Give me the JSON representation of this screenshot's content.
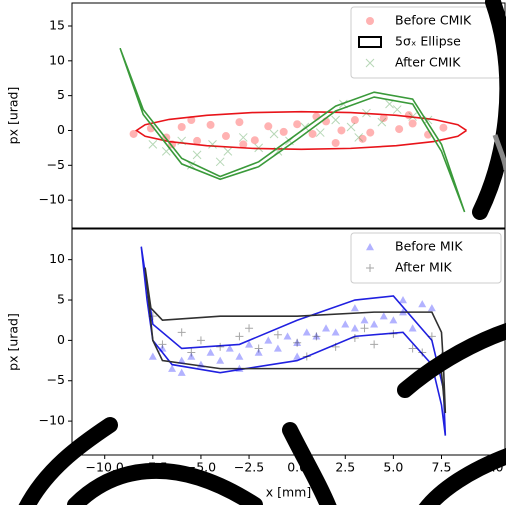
{
  "chart_data": [
    {
      "type": "scatter",
      "ylabel": "px [urad]",
      "xlim": [
        -11.7,
        10.8
      ],
      "ylim": [
        -14,
        18.3
      ],
      "yticks": [
        15,
        10,
        5,
        0,
        {
          "value": -5,
          "label": "−5"
        },
        {
          "value": -10,
          "label": "−10"
        }
      ],
      "legend": "upper right",
      "series": [
        {
          "name": "Before CMIK",
          "color": "#ff0000",
          "marker": "o",
          "x": [
            -8.5,
            -7.6,
            -6.8,
            -6,
            -5.2,
            -4.5,
            -3.7,
            -3,
            -2.2,
            -1.5,
            -0.7,
            0,
            0.8,
            1.5,
            2.3,
            3,
            3.8,
            4.5,
            5.3,
            6,
            6.8,
            7.6,
            -5.5,
            -2.8,
            1,
            3.4,
            5.8,
            -6.5,
            2
          ],
          "y": [
            -0.5,
            0.3,
            -1,
            0.5,
            -1.5,
            0.8,
            -0.8,
            1.2,
            -1.4,
            0.6,
            -0.2,
            0.9,
            -0.5,
            1.3,
            0,
            1.5,
            -0.3,
            1.8,
            0.2,
            1,
            -0.6,
            0.4,
            1.5,
            -2,
            2,
            -1.2,
            2.2,
            -2,
            -1.8
          ]
        },
        {
          "name": "5σₓ Ellipse",
          "color": "#e8141a",
          "legend_color": "#000000",
          "marker": "line",
          "x": [
            8.8,
            8.35,
            7.09,
            5.15,
            2.78,
            0.22,
            -2.33,
            -4.7,
            -6.65,
            -7.9,
            -8.35,
            -7.9,
            -6.65,
            -4.7,
            -2.33,
            0.22,
            2.78,
            5.15,
            7.09,
            8.35,
            8.8
          ],
          "y": [
            0,
            0.83,
            1.59,
            2.18,
            2.57,
            2.7,
            2.57,
            2.18,
            1.59,
            0.83,
            0,
            -0.83,
            -1.59,
            -2.18,
            -2.57,
            -2.7,
            -2.57,
            -2.18,
            -1.59,
            -0.83,
            0
          ]
        },
        {
          "color": "#3a9a3a",
          "marker": "line",
          "x": [
            -9.2,
            -8,
            -6,
            -4,
            -2,
            0,
            2,
            4,
            6,
            7.5,
            8.7,
            7.5,
            6,
            4,
            2,
            0,
            -2,
            -4,
            -6,
            -8,
            -9.2
          ],
          "y": [
            11.8,
            3,
            -4,
            -6.6,
            -4.5,
            -0.5,
            3.5,
            5.5,
            4.5,
            -2,
            -11.7,
            -3,
            3.8,
            4.8,
            2.8,
            -1.3,
            -5.2,
            -7,
            -4.8,
            2.3,
            11.8
          ]
        },
        {
          "name": "After CMIK",
          "color": "#2e8b2e",
          "marker": "x",
          "x": [
            -7.5,
            -6.8,
            -6,
            -5.2,
            -4.4,
            -3.6,
            -2.8,
            -2,
            -1.2,
            -0.4,
            0.4,
            1.2,
            2,
            2.8,
            3.6,
            4.4,
            5.2,
            6,
            6.8,
            -4,
            -1,
            2.4,
            4.8,
            -5.5,
            3.2
          ],
          "y": [
            -2,
            -3,
            -1.5,
            -3.5,
            -2,
            -3,
            -1,
            -2.5,
            -0.5,
            -1.5,
            0.5,
            -0.3,
            1.5,
            0.5,
            2.5,
            1.2,
            3,
            2,
            1.5,
            -4.5,
            -3,
            3.8,
            3.8,
            -5,
            -1
          ]
        }
      ]
    },
    {
      "type": "scatter",
      "xlabel": "x [mm]",
      "ylabel": "px [urad]",
      "xlim": [
        -11.7,
        10.8
      ],
      "ylim": [
        -14.2,
        13.8
      ],
      "xticks": [
        {
          "value": -10,
          "label": "−10.0"
        },
        {
          "value": -7.5,
          "label": "−7.5"
        },
        {
          "value": -5,
          "label": "−5.0"
        },
        {
          "value": -2.5,
          "label": "−2.5"
        },
        {
          "value": 0,
          "label": "0.0"
        },
        2.5,
        {
          "value": 5,
          "label": "5.0"
        },
        7.5,
        {
          "value": 10,
          "label": "10.0"
        }
      ],
      "yticks": [
        10,
        5,
        0,
        {
          "value": -5,
          "label": "−5"
        },
        {
          "value": -10,
          "label": "−10"
        }
      ],
      "legend": "upper right",
      "series": [
        {
          "color": "#2020e0",
          "marker": "line",
          "x": [
            -8.1,
            -7.8,
            -7.5,
            -6.5,
            -4,
            0,
            3,
            5.5,
            7,
            7.5,
            7.7,
            7.6,
            7,
            5,
            3,
            0,
            -3,
            -6,
            -7.5,
            -8.1
          ],
          "y": [
            11.6,
            5,
            0,
            -3,
            -4,
            -2.5,
            0.5,
            1,
            -3,
            -8,
            -11.8,
            -6,
            0,
            5.5,
            5,
            2.5,
            -0.5,
            -1,
            2,
            11.6
          ]
        },
        {
          "color": "#303030",
          "marker": "line",
          "x": [
            -7.9,
            -7.6,
            -7,
            -4,
            0,
            4,
            7,
            7.5,
            7.6,
            7.7,
            7.5,
            7,
            4,
            0,
            -4,
            -7,
            -7.5,
            -7.9
          ],
          "y": [
            9,
            4,
            2.5,
            3,
            3,
            3.5,
            3.5,
            1,
            -3,
            -9,
            -4,
            -3.5,
            -3.5,
            -3.5,
            -3.5,
            -2.5,
            0,
            9
          ]
        },
        {
          "name": "Before MIK",
          "color": "#0000ff",
          "marker": "^",
          "x": [
            -7.5,
            -7,
            -6.5,
            -6,
            -5.5,
            -5,
            -4.5,
            -4,
            -3.5,
            -3,
            -2.5,
            -2,
            -1.5,
            -1,
            -0.5,
            0,
            0.5,
            1,
            1.5,
            2,
            2.5,
            3,
            3.5,
            4,
            4.5,
            5,
            5.5,
            6,
            6.5,
            7,
            -6,
            -3,
            0,
            3,
            5.5
          ],
          "y": [
            -2,
            -1,
            -3.5,
            -2.5,
            -2,
            -3,
            -1.5,
            -2.5,
            -1,
            -2,
            -0.5,
            -1.5,
            0,
            -1,
            0.5,
            -0.3,
            1,
            0.5,
            1.5,
            1,
            2,
            1.5,
            2.5,
            2,
            3,
            2.5,
            3.5,
            1.5,
            4.5,
            4,
            -4,
            -3.5,
            -2,
            4,
            5
          ]
        },
        {
          "name": "After MIK",
          "color": "#000000",
          "marker": "+",
          "x": [
            -7,
            -6,
            -5,
            -4,
            -3,
            -2,
            -1,
            0,
            1,
            2,
            3,
            4,
            5,
            6,
            7,
            -5.5,
            -2.5,
            0.5,
            3.5,
            6.5,
            -7.5,
            7.5
          ],
          "y": [
            -0.5,
            1,
            0,
            -0.8,
            0.5,
            -1,
            0.7,
            -0.3,
            0.5,
            -0.8,
            0.3,
            -0.5,
            0.8,
            -1,
            0.5,
            -1.5,
            1.5,
            -2,
            1.5,
            -1.5,
            3,
            -2
          ]
        }
      ]
    }
  ]
}
